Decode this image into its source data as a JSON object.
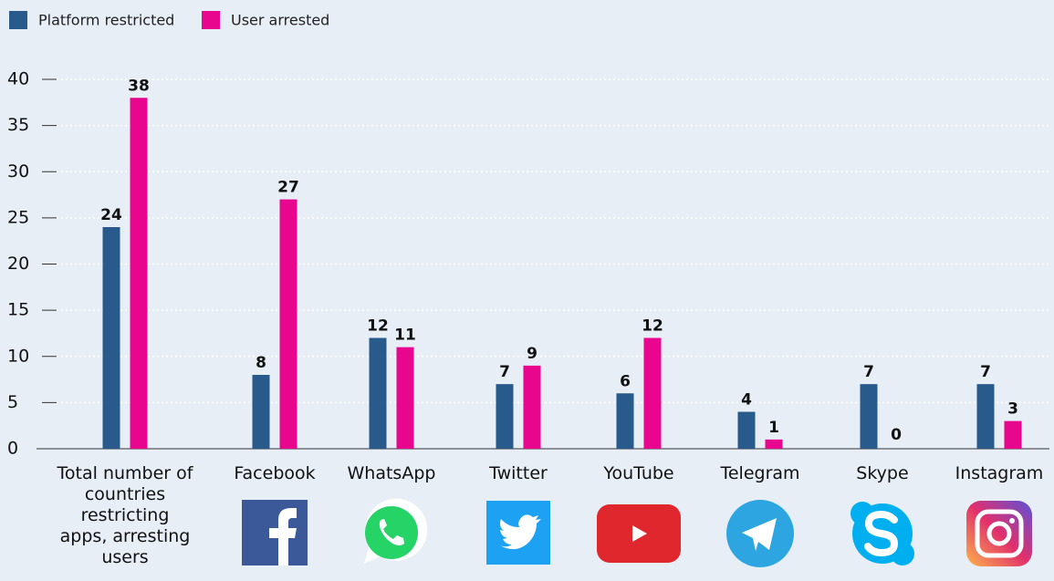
{
  "chart_data": {
    "type": "bar",
    "categories": [
      "Total number of countries restricting apps, arresting users",
      "Facebook",
      "WhatsApp",
      "Twitter",
      "YouTube",
      "Telegram",
      "Skype",
      "Instagram"
    ],
    "series": [
      {
        "name": "Platform restricted",
        "color": "#285a8c",
        "values": [
          24,
          8,
          12,
          7,
          6,
          4,
          7,
          7
        ]
      },
      {
        "name": "User arrested",
        "color": "#e8068e",
        "values": [
          38,
          27,
          11,
          9,
          12,
          1,
          0,
          3
        ]
      }
    ],
    "ylim": [
      0,
      40
    ],
    "yticks": [
      0,
      5,
      10,
      15,
      20,
      25,
      30,
      35,
      40
    ],
    "grid": true,
    "legend": "top-left"
  }
}
